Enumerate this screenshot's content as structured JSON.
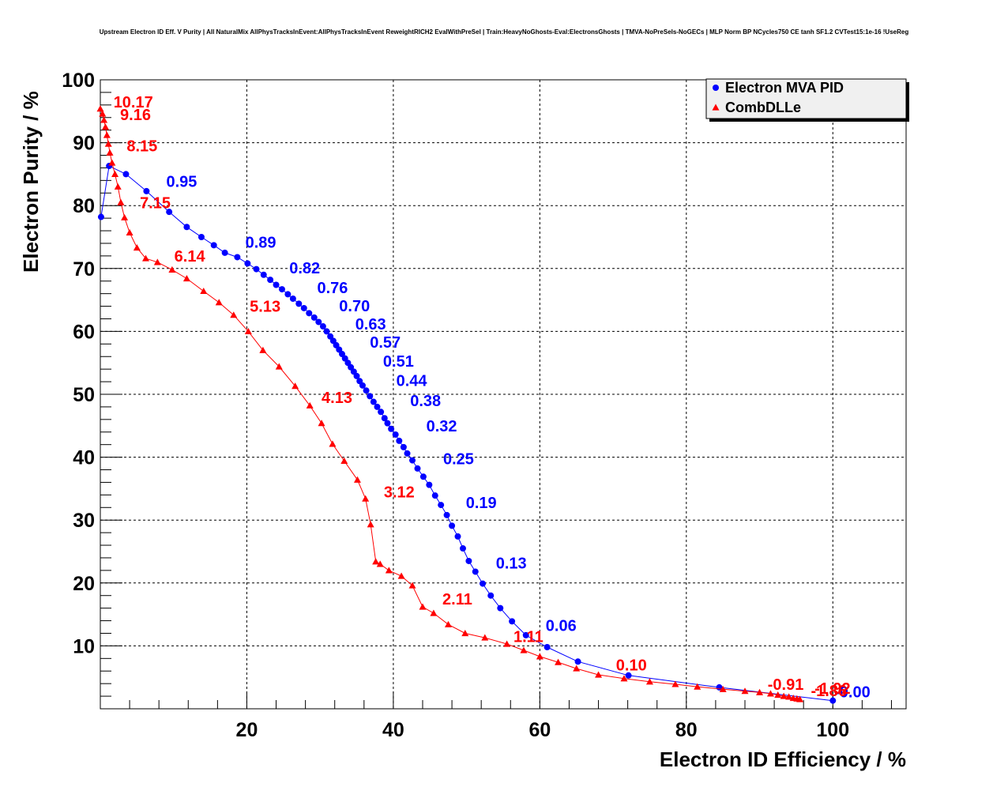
{
  "chart_data": {
    "type": "line",
    "title": "Upstream Electron ID Eff. V Purity | All NaturalMix AllPhysTracksInEvent:AllPhysTracksInEvent ReweightRICH2 EvalWithPreSel | Train:HeavyNoGhosts-Eval:ElectronsGhosts | TMVA-NoPreSels-NoGECs | MLP Norm BP NCycles750 CE tanh SF1.2 CVTest15:1e-16 !UseReg",
    "xlabel": "Electron ID Efficiency / %",
    "ylabel": "Electron Purity / %",
    "xlim": [
      0,
      110
    ],
    "ylim": [
      0,
      100
    ],
    "xticks": [
      20,
      40,
      60,
      80,
      100
    ],
    "yticks": [
      10,
      20,
      30,
      40,
      50,
      60,
      70,
      80,
      90,
      100
    ],
    "grid": true,
    "legend_position": "top-right",
    "series": [
      {
        "name": "Electron MVA PID",
        "color": "#0000ff",
        "marker": "circle",
        "points": [
          [
            0.1,
            78.2
          ],
          [
            1.2,
            86.3
          ],
          [
            3.5,
            85.0
          ],
          [
            6.3,
            82.3
          ],
          [
            9.4,
            79.0
          ],
          [
            11.8,
            76.6
          ],
          [
            13.8,
            75.0
          ],
          [
            15.5,
            73.7
          ],
          [
            17.0,
            72.5
          ],
          [
            18.7,
            71.8
          ],
          [
            20.1,
            70.8
          ],
          [
            21.3,
            69.9
          ],
          [
            22.3,
            69.0
          ],
          [
            23.2,
            68.2
          ],
          [
            24.0,
            67.4
          ],
          [
            24.8,
            66.7
          ],
          [
            25.6,
            65.9
          ],
          [
            26.3,
            65.2
          ],
          [
            27.1,
            64.4
          ],
          [
            27.8,
            63.7
          ],
          [
            28.5,
            62.9
          ],
          [
            29.2,
            62.2
          ],
          [
            29.8,
            61.5
          ],
          [
            30.4,
            60.8
          ],
          [
            30.9,
            60.0
          ],
          [
            31.4,
            59.2
          ],
          [
            31.8,
            58.5
          ],
          [
            32.2,
            57.8
          ],
          [
            32.6,
            57.1
          ],
          [
            33.0,
            56.4
          ],
          [
            33.4,
            55.7
          ],
          [
            33.8,
            55.0
          ],
          [
            34.2,
            54.3
          ],
          [
            34.6,
            53.6
          ],
          [
            35.0,
            52.9
          ],
          [
            35.4,
            52.1
          ],
          [
            35.8,
            51.4
          ],
          [
            36.3,
            50.6
          ],
          [
            36.8,
            49.7
          ],
          [
            37.3,
            48.8
          ],
          [
            37.8,
            48.0
          ],
          [
            38.3,
            47.2
          ],
          [
            38.8,
            46.2
          ],
          [
            39.2,
            45.4
          ],
          [
            39.7,
            44.5
          ],
          [
            40.3,
            43.6
          ],
          [
            40.8,
            42.6
          ],
          [
            41.4,
            41.6
          ],
          [
            41.9,
            40.6
          ],
          [
            42.6,
            39.5
          ],
          [
            43.3,
            38.2
          ],
          [
            44.1,
            36.9
          ],
          [
            44.9,
            35.6
          ],
          [
            45.7,
            33.9
          ],
          [
            46.5,
            32.4
          ],
          [
            47.3,
            30.8
          ],
          [
            48.0,
            29.1
          ],
          [
            48.8,
            27.4
          ],
          [
            49.5,
            25.5
          ],
          [
            50.3,
            23.5
          ],
          [
            51.2,
            21.8
          ],
          [
            52.2,
            19.9
          ],
          [
            53.3,
            18.0
          ],
          [
            54.6,
            16.0
          ],
          [
            56.2,
            13.9
          ],
          [
            58.1,
            11.7
          ],
          [
            61.0,
            9.8
          ],
          [
            65.2,
            7.5
          ],
          [
            72.1,
            5.3
          ],
          [
            84.5,
            3.4
          ],
          [
            100.0,
            1.3
          ]
        ],
        "labels": [
          {
            "text": "0.95",
            "x": 9.0,
            "y": 83.0
          },
          {
            "text": "0.89",
            "x": 19.8,
            "y": 73.3
          },
          {
            "text": "0.82",
            "x": 25.8,
            "y": 69.2
          },
          {
            "text": "0.76",
            "x": 29.6,
            "y": 66.1
          },
          {
            "text": "0.70",
            "x": 32.6,
            "y": 63.2
          },
          {
            "text": "0.63",
            "x": 34.8,
            "y": 60.3
          },
          {
            "text": "0.57",
            "x": 36.8,
            "y": 57.4
          },
          {
            "text": "0.51",
            "x": 38.6,
            "y": 54.4
          },
          {
            "text": "0.44",
            "x": 40.4,
            "y": 51.3
          },
          {
            "text": "0.38",
            "x": 42.3,
            "y": 48.1
          },
          {
            "text": "0.32",
            "x": 44.5,
            "y": 44.1
          },
          {
            "text": "0.25",
            "x": 46.8,
            "y": 38.9
          },
          {
            "text": "0.19",
            "x": 49.9,
            "y": 31.9
          },
          {
            "text": "0.13",
            "x": 54.0,
            "y": 22.3
          },
          {
            "text": "0.06",
            "x": 60.8,
            "y": 12.4
          },
          {
            "text": "-0.00",
            "x": 100.2,
            "y": 1.8
          }
        ]
      },
      {
        "name": "CombDLLe",
        "color": "#ff0000",
        "marker": "triangle",
        "points": [
          [
            0.0,
            95.4
          ],
          [
            0.3,
            94.6
          ],
          [
            0.5,
            93.6
          ],
          [
            0.7,
            92.5
          ],
          [
            0.9,
            91.2
          ],
          [
            1.1,
            89.8
          ],
          [
            1.3,
            88.4
          ],
          [
            1.6,
            86.8
          ],
          [
            2.0,
            85.0
          ],
          [
            2.4,
            83.0
          ],
          [
            2.8,
            80.5
          ],
          [
            3.3,
            78.1
          ],
          [
            4.0,
            75.7
          ],
          [
            5.0,
            73.3
          ],
          [
            6.2,
            71.6
          ],
          [
            7.8,
            71.0
          ],
          [
            9.8,
            69.8
          ],
          [
            11.8,
            68.4
          ],
          [
            14.1,
            66.4
          ],
          [
            16.2,
            64.6
          ],
          [
            18.2,
            62.6
          ],
          [
            20.2,
            60.0
          ],
          [
            22.2,
            57.0
          ],
          [
            24.4,
            54.4
          ],
          [
            26.6,
            51.3
          ],
          [
            28.6,
            48.2
          ],
          [
            30.2,
            45.4
          ],
          [
            31.7,
            42.1
          ],
          [
            33.3,
            39.4
          ],
          [
            35.1,
            36.4
          ],
          [
            36.2,
            33.4
          ],
          [
            36.9,
            29.3
          ],
          [
            37.6,
            23.4
          ],
          [
            38.2,
            23.0
          ],
          [
            39.4,
            22.0
          ],
          [
            41.1,
            21.1
          ],
          [
            42.6,
            19.6
          ],
          [
            44.0,
            16.2
          ],
          [
            45.5,
            15.2
          ],
          [
            47.5,
            13.4
          ],
          [
            49.8,
            12.0
          ],
          [
            52.5,
            11.3
          ],
          [
            55.5,
            10.3
          ],
          [
            57.8,
            9.3
          ],
          [
            60.0,
            8.3
          ],
          [
            62.5,
            7.4
          ],
          [
            65.0,
            6.4
          ],
          [
            68.0,
            5.4
          ],
          [
            71.5,
            4.8
          ],
          [
            75.0,
            4.3
          ],
          [
            78.5,
            3.9
          ],
          [
            81.5,
            3.5
          ],
          [
            85.0,
            3.1
          ],
          [
            88.0,
            2.8
          ],
          [
            90.0,
            2.6
          ],
          [
            91.5,
            2.4
          ],
          [
            92.5,
            2.2
          ],
          [
            93.3,
            2.0
          ],
          [
            94.0,
            1.9
          ],
          [
            94.6,
            1.7
          ],
          [
            95.1,
            1.6
          ],
          [
            95.5,
            1.5
          ]
        ],
        "labels": [
          {
            "text": "10.17",
            "x": 1.8,
            "y": 95.6
          },
          {
            "text": "9.16",
            "x": 2.7,
            "y": 93.6
          },
          {
            "text": "8.15",
            "x": 3.6,
            "y": 88.6
          },
          {
            "text": "7.15",
            "x": 5.4,
            "y": 79.6
          },
          {
            "text": "6.14",
            "x": 10.1,
            "y": 71.1
          },
          {
            "text": "5.13",
            "x": 20.4,
            "y": 63.1
          },
          {
            "text": "4.13",
            "x": 30.2,
            "y": 48.6
          },
          {
            "text": "3.12",
            "x": 38.7,
            "y": 33.6
          },
          {
            "text": "2.11",
            "x": 46.7,
            "y": 16.6
          },
          {
            "text": "1.11",
            "x": 56.4,
            "y": 10.6
          },
          {
            "text": "0.10",
            "x": 70.4,
            "y": 6.1
          },
          {
            "text": "-0.91",
            "x": 91.1,
            "y": 3.0
          },
          {
            "text": "-1.92",
            "x": 97.5,
            "y": 2.4
          },
          {
            "text": "-1.86",
            "x": 97.0,
            "y": 2.0
          }
        ]
      }
    ]
  }
}
